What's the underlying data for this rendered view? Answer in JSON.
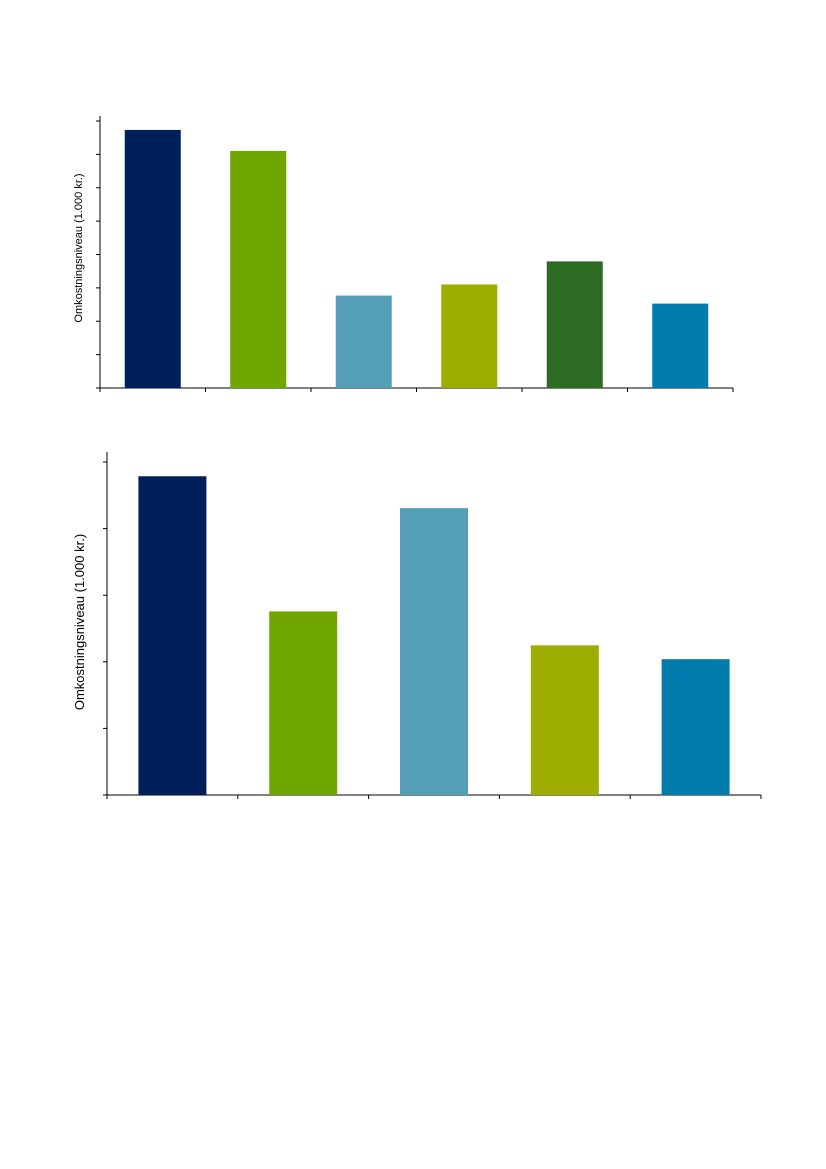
{
  "chart_data": [
    {
      "type": "bar",
      "categories": [
        "",
        "",
        "",
        "",
        "",
        ""
      ],
      "values": [
        7.4,
        6.8,
        2.65,
        2.97,
        3.63,
        2.42
      ],
      "colors": [
        "#001f5b",
        "#6fa600",
        "#559eb8",
        "#9eae00",
        "#2b6b22",
        "#007bad"
      ],
      "title": "",
      "xlabel": "",
      "ylabel": "Omkostningsniveau (1.000 kr.)",
      "ylim": [
        0,
        7.8
      ],
      "ytick_count": 8,
      "grid": false
    },
    {
      "type": "bar",
      "categories": [
        "",
        "",
        "",
        "",
        ""
      ],
      "values": [
        4.6,
        2.65,
        4.14,
        2.16,
        1.96
      ],
      "colors": [
        "#001f5b",
        "#6fa600",
        "#559eb8",
        "#9eae00",
        "#007bad"
      ],
      "title": "",
      "xlabel": "",
      "ylabel": "Omkostningsniveau (1.000 kr.)",
      "ylim": [
        0,
        4.95
      ],
      "ytick_count": 5,
      "grid": false
    }
  ]
}
